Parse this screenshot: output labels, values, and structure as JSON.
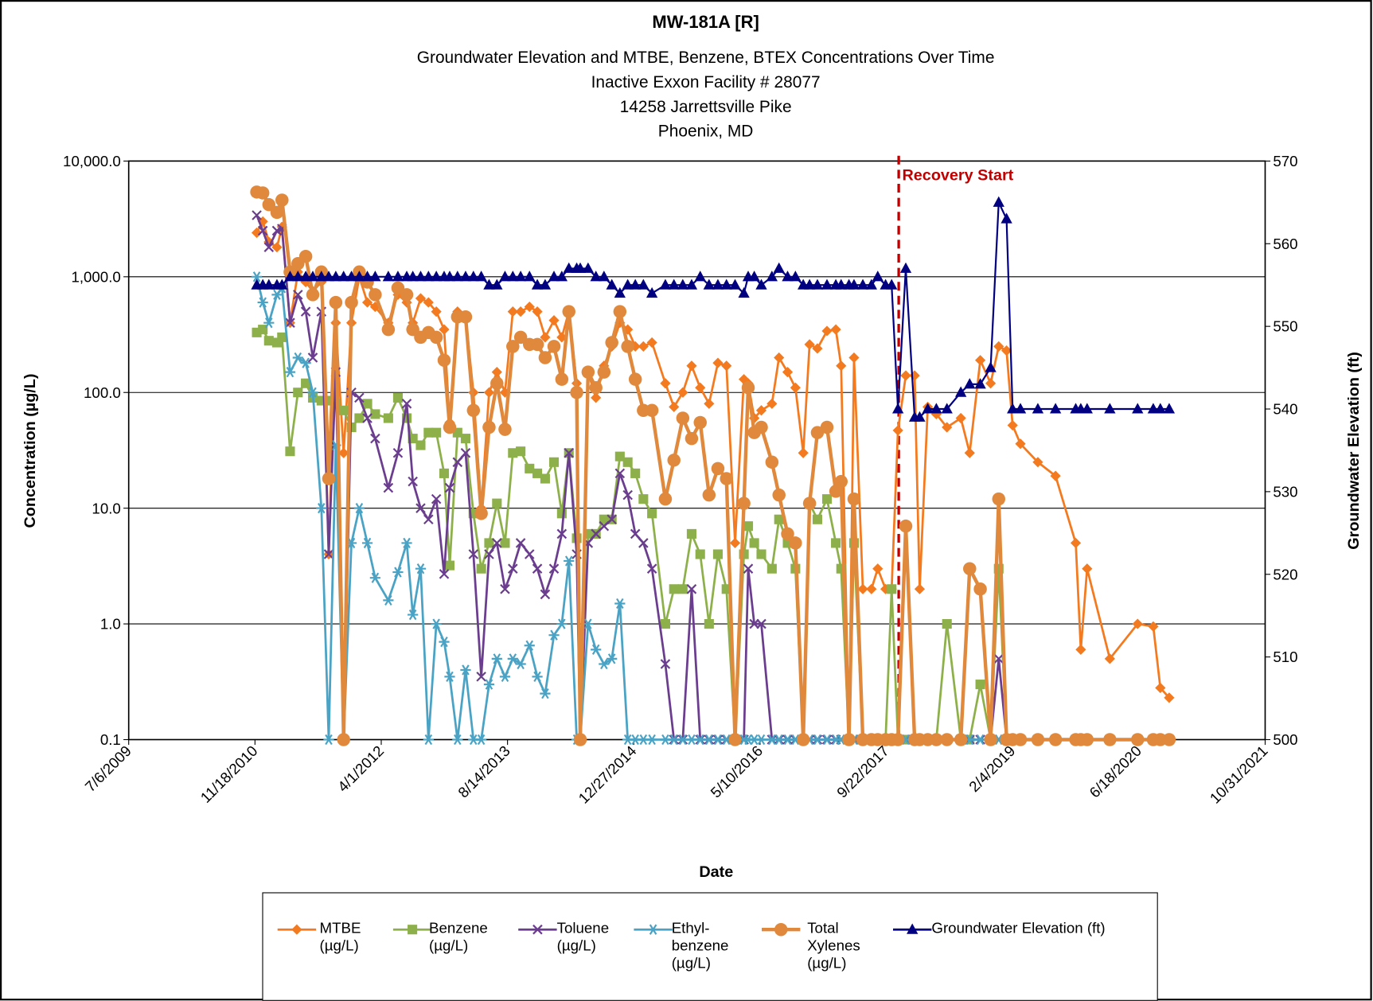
{
  "chart_data": {
    "type": "line",
    "title": "MW-181A [R]",
    "subtitle": [
      "Groundwater Elevation and MTBE, Benzene, BTEX Concentrations Over Time",
      "Inactive Exxon Facility # 28077",
      "14258 Jarrettsville Pike",
      "Phoenix, MD"
    ],
    "x_label": "Date",
    "y_label": "Concentration (µg/L)",
    "y2_label": "Groundwater Elevation (ft)",
    "ylog": true,
    "grid": true,
    "legend": "bottom",
    "xlim": [
      "7/6/2009",
      "10/31/2021"
    ],
    "xticks": [
      "7/6/2009",
      "11/18/2010",
      "4/1/2012",
      "8/14/2013",
      "12/27/2014",
      "5/10/2016",
      "9/22/2017",
      "2/4/2019",
      "6/18/2020",
      "10/31/2021"
    ],
    "ylim": [
      0.1,
      10000
    ],
    "yticks": [
      {
        "value": 10000,
        "label": "10,000.0"
      },
      {
        "value": 1000,
        "label": "1,000.0"
      },
      {
        "value": 100,
        "label": "100.0"
      },
      {
        "value": 10,
        "label": "10.0"
      },
      {
        "value": 1,
        "label": "1.0"
      },
      0.1
    ],
    "y2lim": [
      500,
      570
    ],
    "y2ticks": [
      500,
      510,
      520,
      530,
      540,
      550,
      560,
      570
    ],
    "annotation": {
      "text": "Recovery Start",
      "x": "11/10/2017",
      "color": "#c00000"
    },
    "x": [
      "11/25/2010",
      "12/19/2010",
      "1/12/2011",
      "2/13/2011",
      "3/5/2011",
      "4/6/2011",
      "5/7/2011",
      "6/7/2011",
      "7/5/2011",
      "8/8/2011",
      "9/6/2011",
      "10/4/2011",
      "11/4/2011",
      "12/5/2011",
      "1/5/2012",
      "2/6/2012",
      "3/8/2012",
      "4/29/2012",
      "6/6/2012",
      "7/11/2012",
      "8/4/2012",
      "9/4/2012",
      "10/5/2012",
      "11/5/2012",
      "12/6/2012",
      "12/28/2012",
      "1/28/2013",
      "3/1/2013",
      "4/1/2013",
      "5/2/2013",
      "6/2/2013",
      "7/3/2013",
      "8/4/2013",
      "9/4/2013",
      "10/5/2013",
      "11/9/2013",
      "12/10/2013",
      "1/10/2014",
      "2/14/2014",
      "3/17/2014",
      "4/14/2014",
      "5/15/2014",
      "5/29/2014",
      "6/29/2014",
      "7/30/2014",
      "8/31/2014",
      "10/1/2014",
      "11/2/2014",
      "12/3/2014",
      "1/2/2015",
      "2/3/2015",
      "3/9/2015",
      "5/1/2015",
      "6/4/2015",
      "7/9/2015",
      "8/13/2015",
      "9/16/2015",
      "10/21/2015",
      "11/25/2015",
      "12/29/2015",
      "2/1/2016",
      "3/7/2016",
      "3/24/2016",
      "4/17/2016",
      "5/15/2016",
      "6/26/2016",
      "7/24/2016",
      "8/27/2016",
      "9/27/2016",
      "10/28/2016",
      "11/22/2016",
      "12/23/2016",
      "1/30/2017",
      "3/6/2017",
      "3/27/2017",
      "4/27/2017",
      "5/17/2017",
      "6/21/2017",
      "7/25/2017",
      "8/19/2017",
      "9/19/2017",
      "10/13/2017",
      "11/7/2017",
      "12/8/2017",
      "1/12/2018",
      "2/1/2018",
      "3/5/2018",
      "4/8/2018",
      "5/20/2018",
      "7/14/2018",
      "8/18/2018",
      "9/29/2018",
      "11/9/2018",
      "12/11/2018",
      "1/11/2019",
      "2/4/2019",
      "3/7/2019",
      "5/15/2019",
      "7/24/2019",
      "10/12/2019",
      "11/1/2019",
      "11/26/2019",
      "2/24/2020",
      "6/13/2020",
      "8/14/2020",
      "9/11/2020",
      "10/16/2020"
    ],
    "series": [
      {
        "name": "MTBE (µg/L)",
        "color": "#f47a20",
        "marker": "diamond",
        "values": [
          2400,
          3000,
          2000,
          1800,
          2700,
          400,
          1100,
          900,
          750,
          900,
          4,
          400,
          30,
          400,
          1000,
          600,
          550,
          400,
          700,
          600,
          400,
          650,
          600,
          500,
          350,
          55,
          500,
          450,
          100,
          10,
          100,
          150,
          100,
          500,
          500,
          550,
          500,
          300,
          420,
          300,
          500,
          120,
          0.1,
          150,
          90,
          170,
          250,
          400,
          350,
          250,
          250,
          270,
          120,
          75,
          100,
          170,
          110,
          80,
          180,
          170,
          5,
          130,
          120,
          60,
          70,
          80,
          200,
          150,
          110,
          30,
          260,
          240,
          340,
          350,
          170,
          0.1,
          200,
          2,
          2,
          3,
          2,
          2,
          47,
          140,
          140,
          2,
          75,
          65,
          50,
          60,
          30,
          190,
          120,
          250,
          230,
          52,
          36,
          25,
          19,
          5,
          0.6,
          3,
          0.5,
          1,
          0.95,
          0.28,
          0.23
        ]
      },
      {
        "name": "Benzene (µg/L)",
        "color": "#8db04a",
        "marker": "square",
        "values": [
          330,
          350,
          280,
          270,
          300,
          31,
          100,
          120,
          90,
          85,
          85,
          80,
          70,
          50,
          60,
          80,
          65,
          60,
          90,
          60,
          40,
          35,
          45,
          45,
          20,
          3.2,
          45,
          40,
          9,
          3,
          5,
          11,
          5,
          30,
          31,
          22,
          20,
          18,
          25,
          9,
          30,
          5.5,
          0.1,
          6,
          6,
          8,
          8,
          28,
          25,
          20,
          12,
          9,
          1,
          2,
          2,
          6,
          4,
          1,
          4,
          2,
          0.1,
          4,
          7,
          5,
          4,
          3,
          8,
          5,
          3,
          0.1,
          11,
          8,
          12,
          5,
          3,
          0.1,
          5,
          0.1,
          0.1,
          0.1,
          0.1,
          2,
          0.1,
          0.1,
          0.1,
          0.1,
          0.1,
          0.1,
          1,
          0.1,
          0.1,
          0.3,
          0.1,
          3,
          0.1,
          0.1,
          0.1,
          0.1,
          0.1,
          0.1,
          0.1,
          0.1,
          0.1,
          0.1,
          0.1,
          0.1,
          0.1
        ]
      },
      {
        "name": "Toluene (µg/L)",
        "color": "#6b3d8f",
        "marker": "x",
        "values": [
          3400,
          2500,
          1800,
          2500,
          2600,
          400,
          700,
          500,
          200,
          500,
          4,
          150,
          0.1,
          100,
          90,
          60,
          40,
          15,
          30,
          80,
          17,
          10,
          8,
          12,
          2.7,
          15,
          25,
          30,
          4,
          0.35,
          4,
          5,
          2,
          3,
          5,
          4,
          3,
          1.8,
          3,
          6,
          30,
          4,
          0.1,
          5,
          6,
          7,
          8,
          20,
          13,
          6,
          5,
          3,
          0.45,
          0.1,
          0.1,
          2,
          0.1,
          0.1,
          0.1,
          0.1,
          0.1,
          0.1,
          3,
          1,
          1,
          0.1,
          0.1,
          0.1,
          0.1,
          0.1,
          0.1,
          0.1,
          0.1,
          0.1,
          0.1,
          0.1,
          0.1,
          0.1,
          0.1,
          0.1,
          0.1,
          0.1,
          0.1,
          0.1,
          0.1,
          0.1,
          0.1,
          0.1,
          0.1,
          0.1,
          0.1,
          0.1,
          0.1,
          0.5,
          0.1,
          0.1,
          0.1,
          0.1,
          0.1,
          0.1,
          0.1,
          0.1,
          0.1,
          0.1,
          0.1,
          0.1,
          0.1
        ]
      },
      {
        "name": "Ethyl-benzene (µg/L)",
        "color": "#4aa3c4",
        "marker": "asterisk",
        "values": [
          1000,
          600,
          400,
          700,
          800,
          150,
          200,
          180,
          100,
          10,
          0.1,
          35,
          0.1,
          5,
          10,
          5,
          2.5,
          1.6,
          2.8,
          5,
          1.2,
          3,
          0.1,
          1,
          0.7,
          0.35,
          0.1,
          0.4,
          0.1,
          0.1,
          0.3,
          0.5,
          0.35,
          0.5,
          0.45,
          0.65,
          0.35,
          0.25,
          0.8,
          1,
          3.5,
          0.1,
          0.1,
          1,
          0.6,
          0.45,
          0.5,
          1.5,
          0.1,
          0.1,
          0.1,
          0.1,
          0.1,
          0.1,
          0.1,
          0.1,
          0.1,
          0.1,
          0.1,
          0.1,
          0.1,
          0.1,
          0.1,
          0.1,
          0.1,
          0.1,
          0.1,
          0.1,
          0.1,
          0.1,
          0.1,
          0.1,
          0.1,
          0.1,
          0.1,
          0.1,
          0.1,
          0.1,
          0.1,
          0.1,
          0.1,
          0.1,
          0.1,
          0.1,
          0.1,
          0.1,
          0.1,
          0.1,
          0.1,
          0.1,
          0.1,
          0.1,
          0.1,
          0.1,
          0.1,
          0.1,
          0.1,
          0.1,
          0.1,
          0.1,
          0.1,
          0.1,
          0.1,
          0.1,
          0.1,
          0.1,
          0.1
        ]
      },
      {
        "name": "Total Xylenes (µg/L)",
        "color": "#e0893c",
        "marker": "circle",
        "values": [
          5400,
          5300,
          4200,
          3600,
          4600,
          1100,
          1300,
          1500,
          700,
          1100,
          18,
          600,
          0.1,
          600,
          1100,
          900,
          700,
          350,
          800,
          700,
          350,
          300,
          330,
          300,
          190,
          50,
          450,
          450,
          70,
          9,
          50,
          120,
          48,
          250,
          300,
          260,
          260,
          200,
          250,
          130,
          500,
          100,
          0.1,
          150,
          110,
          150,
          270,
          500,
          250,
          130,
          70,
          70,
          12,
          26,
          60,
          40,
          55,
          13,
          22,
          18,
          0.1,
          11,
          110,
          45,
          50,
          25,
          13,
          6,
          5,
          0.1,
          11,
          45,
          50,
          14,
          17,
          0.1,
          12,
          0.1,
          0.1,
          0.1,
          0.1,
          0.1,
          0.1,
          7,
          0.1,
          0.1,
          0.1,
          0.1,
          0.1,
          0.1,
          3,
          2,
          0.1,
          12,
          0.1,
          0.1,
          0.1,
          0.1,
          0.1,
          0.1,
          0.1,
          0.1,
          0.1,
          0.1,
          0.1,
          0.1,
          0.1
        ]
      },
      {
        "name": "Groundwater Elevation (ft)",
        "color": "#000080",
        "marker": "triangle",
        "axis": "y2",
        "values": [
          555,
          555,
          555,
          555,
          555,
          556,
          556,
          556,
          556,
          556,
          556,
          556,
          556,
          556,
          556,
          556,
          556,
          556,
          556,
          556,
          556,
          556,
          556,
          556,
          556,
          556,
          556,
          556,
          556,
          556,
          555,
          555,
          556,
          556,
          556,
          556,
          555,
          555,
          556,
          556,
          557,
          557,
          557,
          557,
          556,
          556,
          555,
          554,
          555,
          555,
          555,
          554,
          555,
          555,
          555,
          555,
          556,
          555,
          555,
          555,
          555,
          554,
          556,
          556,
          555,
          556,
          557,
          556,
          556,
          555,
          555,
          555,
          555,
          555,
          555,
          555,
          555,
          555,
          555,
          556,
          555,
          555,
          540,
          557,
          539,
          539,
          540,
          540,
          540,
          542,
          543,
          543,
          545,
          565,
          563,
          540,
          540,
          540,
          540,
          540,
          540,
          540,
          540,
          540,
          540,
          540,
          540
        ]
      }
    ]
  }
}
